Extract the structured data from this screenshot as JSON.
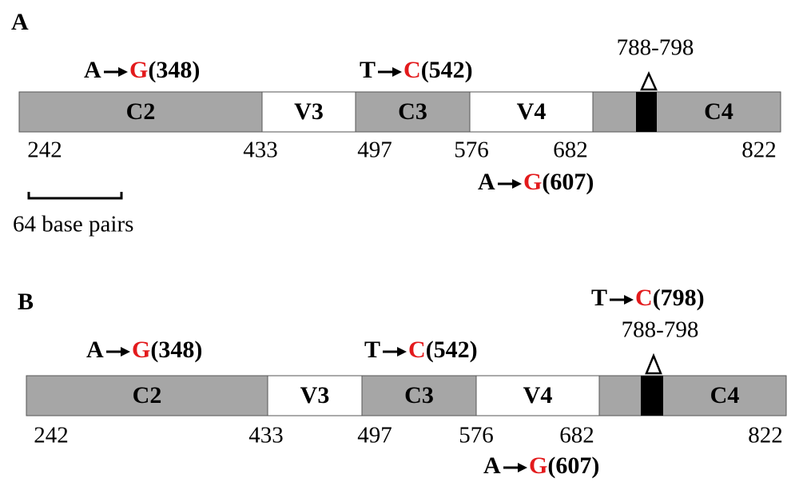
{
  "panels": [
    {
      "label": "A",
      "segments": [
        "C2",
        "V3",
        "C3",
        "V4",
        "C4"
      ],
      "positions": [
        242,
        433,
        497,
        576,
        682,
        822
      ],
      "site_label": "788-798",
      "mutations": [
        {
          "from": "A",
          "to": "G",
          "position": "(348)"
        },
        {
          "from": "T",
          "to": "C",
          "position": "(542)"
        },
        {
          "from": "A",
          "to": "G",
          "position": "(607)"
        }
      ],
      "scale_label": "64 base pairs"
    },
    {
      "label": "B",
      "segments": [
        "C2",
        "V3",
        "C3",
        "V4",
        "C4"
      ],
      "positions": [
        242,
        433,
        497,
        576,
        682,
        822
      ],
      "site_label": "788-798",
      "mutations": [
        {
          "from": "A",
          "to": "G",
          "position": "(348)"
        },
        {
          "from": "T",
          "to": "C",
          "position": "(542)"
        },
        {
          "from": "A",
          "to": "G",
          "position": "(607)"
        },
        {
          "from": "T",
          "to": "C",
          "position": "(798)"
        }
      ]
    }
  ]
}
